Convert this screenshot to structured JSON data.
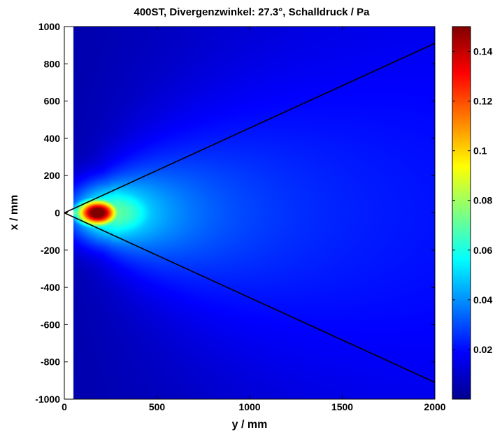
{
  "chart_data": {
    "type": "heatmap",
    "title": "400ST, Divergenzwinkel: 27.3°, Schalldruck / Pa",
    "xlabel": "y / mm",
    "ylabel": "x / mm",
    "xlim": [
      0,
      2000
    ],
    "ylim": [
      -1000,
      1000
    ],
    "x_ticks": [
      0,
      500,
      1000,
      1500,
      2000
    ],
    "y_ticks": [
      -1000,
      -800,
      -600,
      -400,
      -200,
      0,
      200,
      400,
      600,
      800,
      1000
    ],
    "x_tick_labels": [
      "0",
      "500",
      "1000",
      "1500",
      "2000"
    ],
    "y_tick_labels": [
      "-1000",
      "-800",
      "-600",
      "-400",
      "-200",
      "0",
      "200",
      "400",
      "600",
      "800",
      "1000"
    ],
    "colormap": "jet",
    "colorbar": {
      "range": [
        0,
        0.15
      ],
      "ticks": [
        0.02,
        0.04,
        0.06,
        0.08,
        0.1,
        0.12,
        0.14
      ],
      "tick_labels": [
        "0.02",
        "0.04",
        "0.06",
        "0.08",
        "0.1",
        "0.12",
        "0.14"
      ]
    },
    "data_start_y": 50,
    "peak": {
      "y": 180,
      "x": 0,
      "value": 0.15
    },
    "source_point": {
      "y": 0,
      "x": 0
    },
    "divergence_lines": [
      {
        "name": "upper",
        "from": [
          0,
          0
        ],
        "to": [
          2000,
          910
        ]
      },
      {
        "name": "lower",
        "from": [
          0,
          0
        ],
        "to": [
          2000,
          -910
        ]
      }
    ]
  }
}
